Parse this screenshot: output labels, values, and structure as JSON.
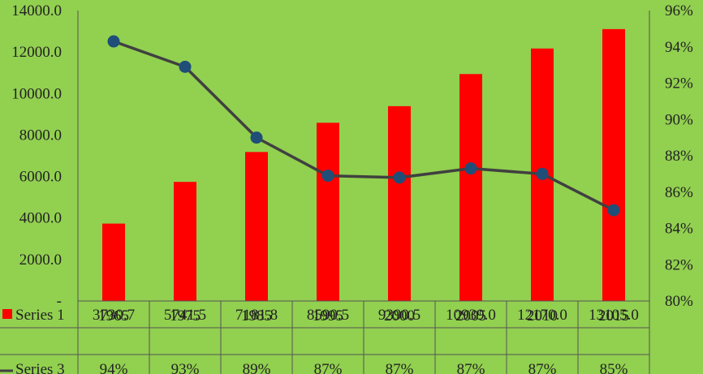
{
  "colors": {
    "background": "#92d050",
    "series1": "#ff0000",
    "series3_line": "#404040",
    "series3_marker": "#1f4e79"
  },
  "chart_data": {
    "type": "bar",
    "categories": [
      "1965",
      "1975",
      "1985",
      "1995",
      "2000",
      "2005",
      "2010",
      "2015"
    ],
    "series": [
      {
        "name": "Series 1",
        "type": "bar",
        "axis": "left",
        "values": [
          3730.7,
          5741.5,
          7181.8,
          8590.5,
          9390.5,
          10939.0,
          12170.0,
          13105.0
        ],
        "labels": [
          "3730.7",
          "5741.5",
          "7181.8",
          "8590.5",
          "9390.5",
          "10939.0",
          "12170.0",
          "13105.0"
        ]
      },
      {
        "name": "Series 3",
        "type": "line",
        "axis": "right",
        "values": [
          94.3,
          92.9,
          89.0,
          86.9,
          86.8,
          87.3,
          87.0,
          85.0
        ],
        "labels": [
          "94%",
          "93%",
          "89%",
          "87%",
          "87%",
          "87%",
          "87%",
          "85%"
        ]
      }
    ],
    "left_axis": {
      "ylim": [
        0,
        14000
      ],
      "ticks": [
        0,
        2000,
        4000,
        6000,
        8000,
        10000,
        12000,
        14000
      ],
      "tick_labels": [
        "-",
        "2000.0",
        "4000.0",
        "6000.0",
        "8000.0",
        "10000.0",
        "12000.0",
        "14000.0"
      ]
    },
    "right_axis": {
      "ylim": [
        80,
        96
      ],
      "ticks": [
        80,
        82,
        84,
        86,
        88,
        90,
        92,
        94,
        96
      ],
      "tick_labels": [
        "80%",
        "82%",
        "84%",
        "86%",
        "88%",
        "90%",
        "92%",
        "94%",
        "96%"
      ]
    },
    "data_table": true,
    "grid": false
  }
}
